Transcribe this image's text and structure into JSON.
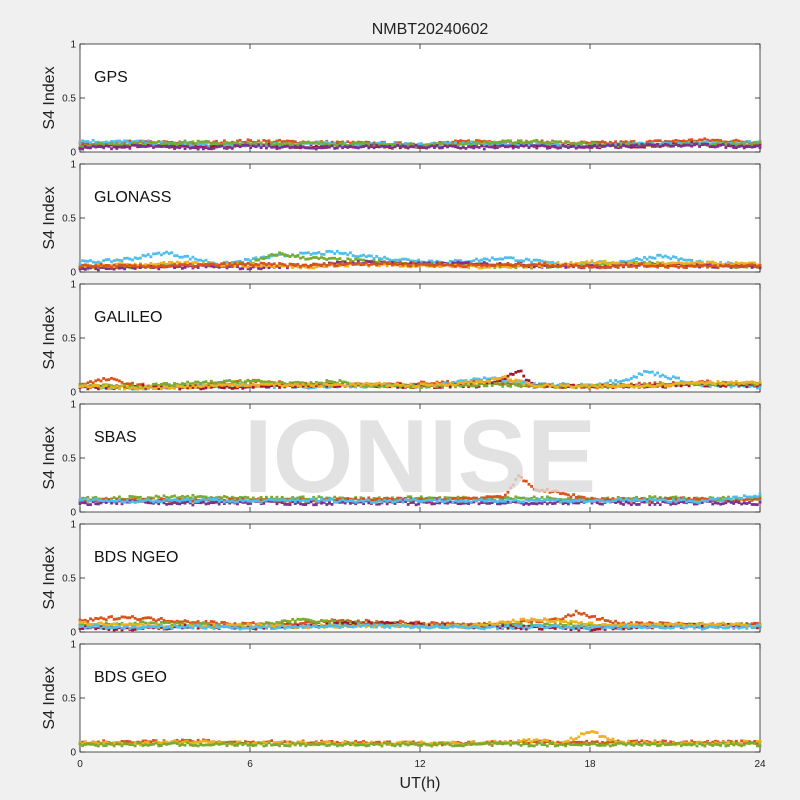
{
  "watermark": "IONISE",
  "chart_data": {
    "type": "scatter",
    "title": "NMBT20240602",
    "xlabel": "UT(h)",
    "ylabel": "S4 Index",
    "xlim": [
      0,
      24
    ],
    "ylim": [
      0,
      1
    ],
    "x_ticks": [
      "0",
      "6",
      "12",
      "18",
      "24"
    ],
    "y_ticks": [
      "0",
      "0.5",
      "1"
    ],
    "colors": [
      "#0072BD",
      "#D95319",
      "#EDB120",
      "#7E2F8E",
      "#77AC30",
      "#4DBEEE",
      "#A2142F"
    ],
    "panels": [
      {
        "label": "GPS",
        "series": [
          {
            "color": "#A2142F",
            "x": [
              0,
              2,
              4,
              6,
              8,
              10,
              12,
              14,
              16,
              18,
              20,
              22,
              24
            ],
            "y": [
              0.05,
              0.06,
              0.05,
              0.07,
              0.05,
              0.06,
              0.05,
              0.07,
              0.06,
              0.05,
              0.06,
              0.08,
              0.06
            ]
          },
          {
            "color": "#D95319",
            "x": [
              0,
              2,
              4,
              6,
              8,
              10,
              12,
              14,
              16,
              18,
              20,
              22,
              24
            ],
            "y": [
              0.07,
              0.09,
              0.08,
              0.1,
              0.09,
              0.08,
              0.07,
              0.1,
              0.09,
              0.08,
              0.09,
              0.11,
              0.09
            ]
          },
          {
            "color": "#4DBEEE",
            "x": [
              0,
              2,
              4,
              6,
              8,
              10,
              12,
              14,
              16,
              18,
              20,
              22,
              24
            ],
            "y": [
              0.1,
              0.09,
              0.07,
              0.06,
              0.08,
              0.07,
              0.07,
              0.08,
              0.07,
              0.06,
              0.07,
              0.08,
              0.09
            ]
          },
          {
            "color": "#77AC30",
            "x": [
              0,
              2,
              4,
              6,
              8,
              10,
              12,
              14,
              16,
              18,
              20,
              22,
              24
            ],
            "y": [
              0.06,
              0.08,
              0.09,
              0.07,
              0.08,
              0.07,
              0.06,
              0.08,
              0.1,
              0.07,
              0.06,
              0.07,
              0.08
            ]
          },
          {
            "color": "#7E2F8E",
            "x": [
              0,
              2,
              4,
              6,
              8,
              10,
              12,
              14,
              16,
              18,
              20,
              22,
              24
            ],
            "y": [
              0.04,
              0.05,
              0.04,
              0.05,
              0.04,
              0.05,
              0.05,
              0.04,
              0.05,
              0.05,
              0.06,
              0.06,
              0.05
            ]
          }
        ]
      },
      {
        "label": "GLONASS",
        "series": [
          {
            "color": "#4DBEEE",
            "x": [
              0,
              1,
              2,
              3,
              5,
              7,
              9,
              11,
              13,
              15,
              17,
              19,
              20.5,
              22,
              24
            ],
            "y": [
              0.09,
              0.1,
              0.13,
              0.18,
              0.07,
              0.15,
              0.18,
              0.12,
              0.09,
              0.13,
              0.07,
              0.09,
              0.15,
              0.08,
              0.06
            ]
          },
          {
            "color": "#77AC30",
            "x": [
              0,
              2,
              4,
              6,
              7,
              8,
              10,
              12,
              14,
              16,
              18,
              20,
              22,
              24
            ],
            "y": [
              0.04,
              0.05,
              0.06,
              0.08,
              0.17,
              0.13,
              0.1,
              0.07,
              0.06,
              0.05,
              0.07,
              0.08,
              0.06,
              0.05
            ]
          },
          {
            "color": "#7E2F8E",
            "x": [
              0,
              2,
              4,
              6,
              8,
              10,
              12,
              14,
              16,
              18,
              20,
              22,
              24
            ],
            "y": [
              0.03,
              0.04,
              0.05,
              0.04,
              0.06,
              0.09,
              0.07,
              0.08,
              0.06,
              0.05,
              0.07,
              0.06,
              0.05
            ]
          },
          {
            "color": "#EDB120",
            "x": [
              0,
              2,
              4,
              6,
              8,
              10,
              12,
              14,
              16,
              18,
              20,
              22,
              24
            ],
            "y": [
              0.05,
              0.07,
              0.08,
              0.06,
              0.05,
              0.07,
              0.06,
              0.05,
              0.06,
              0.09,
              0.07,
              0.08,
              0.07
            ]
          },
          {
            "color": "#D95319",
            "x": [
              0,
              2,
              4,
              6,
              8,
              10,
              12,
              14,
              16,
              18,
              20,
              22,
              24
            ],
            "y": [
              0.06,
              0.05,
              0.06,
              0.07,
              0.06,
              0.08,
              0.07,
              0.06,
              0.07,
              0.05,
              0.06,
              0.05,
              0.06
            ]
          }
        ]
      },
      {
        "label": "GALILEO",
        "series": [
          {
            "color": "#D95319",
            "x": [
              0,
              1,
              2,
              4,
              6,
              8,
              10,
              12,
              14,
              16,
              18,
              20,
              22,
              24
            ],
            "y": [
              0.07,
              0.12,
              0.06,
              0.05,
              0.1,
              0.07,
              0.06,
              0.08,
              0.09,
              0.06,
              0.05,
              0.07,
              0.09,
              0.07
            ]
          },
          {
            "color": "#4DBEEE",
            "x": [
              0,
              2,
              4,
              6,
              8,
              10,
              12,
              13,
              14.5,
              16,
              18,
              19.5,
              20,
              22,
              24
            ],
            "y": [
              0.05,
              0.04,
              0.05,
              0.06,
              0.05,
              0.06,
              0.05,
              0.08,
              0.13,
              0.07,
              0.06,
              0.13,
              0.19,
              0.06,
              0.05
            ]
          },
          {
            "color": "#A2142F",
            "x": [
              0,
              2,
              4,
              6,
              8,
              10,
              12,
              14,
              15,
              15.5,
              16,
              18,
              20,
              22,
              24
            ],
            "y": [
              0.04,
              0.05,
              0.04,
              0.05,
              0.06,
              0.07,
              0.05,
              0.06,
              0.12,
              0.2,
              0.05,
              0.06,
              0.05,
              0.07,
              0.06
            ]
          },
          {
            "color": "#77AC30",
            "x": [
              0,
              2,
              4,
              6,
              8,
              9,
              10,
              12,
              14,
              16,
              18,
              20,
              22,
              24
            ],
            "y": [
              0.06,
              0.05,
              0.08,
              0.1,
              0.07,
              0.1,
              0.06,
              0.05,
              0.07,
              0.06,
              0.05,
              0.06,
              0.08,
              0.07
            ]
          },
          {
            "color": "#EDB120",
            "x": [
              0,
              2,
              4,
              6,
              8,
              10,
              12,
              14,
              15,
              16,
              18,
              20,
              22,
              24
            ],
            "y": [
              0.05,
              0.04,
              0.05,
              0.07,
              0.06,
              0.07,
              0.06,
              0.09,
              0.13,
              0.06,
              0.05,
              0.06,
              0.09,
              0.08
            ]
          }
        ]
      },
      {
        "label": "SBAS",
        "series": [
          {
            "color": "#77AC30",
            "x": [
              0,
              2,
              4,
              6,
              8,
              10,
              12,
              14,
              16,
              18,
              20,
              22,
              24
            ],
            "y": [
              0.12,
              0.13,
              0.14,
              0.12,
              0.13,
              0.12,
              0.13,
              0.12,
              0.13,
              0.12,
              0.13,
              0.12,
              0.13
            ]
          },
          {
            "color": "#D95319",
            "x": [
              0,
              2,
              4,
              6,
              8,
              10,
              12,
              14,
              15,
              15.5,
              16,
              18,
              20,
              22,
              24
            ],
            "y": [
              0.1,
              0.11,
              0.1,
              0.11,
              0.1,
              0.12,
              0.11,
              0.13,
              0.15,
              0.33,
              0.22,
              0.12,
              0.11,
              0.12,
              0.11
            ]
          },
          {
            "color": "#7E2F8E",
            "x": [
              0,
              2,
              4,
              6,
              8,
              10,
              12,
              14,
              16,
              18,
              20,
              22,
              24
            ],
            "y": [
              0.08,
              0.09,
              0.08,
              0.09,
              0.08,
              0.09,
              0.08,
              0.09,
              0.08,
              0.09,
              0.08,
              0.09,
              0.08
            ]
          },
          {
            "color": "#4DBEEE",
            "x": [
              0,
              2,
              4,
              6,
              8,
              10,
              12,
              14,
              16,
              18,
              20,
              22,
              24
            ],
            "y": [
              0.11,
              0.1,
              0.11,
              0.1,
              0.11,
              0.1,
              0.11,
              0.1,
              0.11,
              0.1,
              0.11,
              0.1,
              0.15
            ]
          }
        ]
      },
      {
        "label": "BDS NGEO",
        "series": [
          {
            "color": "#D95319",
            "x": [
              0,
              1.5,
              3,
              5,
              7,
              9,
              11,
              13,
              15,
              17,
              17.5,
              19,
              21,
              23,
              24
            ],
            "y": [
              0.1,
              0.14,
              0.11,
              0.08,
              0.07,
              0.1,
              0.09,
              0.07,
              0.08,
              0.12,
              0.18,
              0.08,
              0.07,
              0.06,
              0.07
            ]
          },
          {
            "color": "#77AC30",
            "x": [
              0,
              2,
              4,
              6,
              7.5,
              9,
              11,
              13,
              15,
              17,
              19,
              21,
              23,
              24
            ],
            "y": [
              0.06,
              0.08,
              0.07,
              0.05,
              0.11,
              0.09,
              0.07,
              0.05,
              0.06,
              0.07,
              0.05,
              0.06,
              0.07,
              0.06
            ]
          },
          {
            "color": "#A2142F",
            "x": [
              0,
              2,
              4,
              6,
              8,
              10,
              12,
              14,
              16,
              18,
              20,
              22,
              24
            ],
            "y": [
              0.04,
              0.03,
              0.05,
              0.04,
              0.06,
              0.08,
              0.07,
              0.05,
              0.04,
              0.03,
              0.05,
              0.06,
              0.05
            ]
          },
          {
            "color": "#EDB120",
            "x": [
              0,
              2,
              4,
              6,
              8,
              10,
              12,
              14,
              16,
              18,
              20,
              22,
              24
            ],
            "y": [
              0.08,
              0.06,
              0.05,
              0.06,
              0.05,
              0.06,
              0.05,
              0.06,
              0.12,
              0.07,
              0.06,
              0.07,
              0.06
            ]
          },
          {
            "color": "#4DBEEE",
            "x": [
              0,
              2,
              4,
              6,
              8,
              10,
              12,
              14,
              16,
              18,
              20,
              22,
              24
            ],
            "y": [
              0.05,
              0.04,
              0.05,
              0.04,
              0.05,
              0.06,
              0.05,
              0.04,
              0.05,
              0.04,
              0.05,
              0.04,
              0.05
            ]
          }
        ]
      },
      {
        "label": "BDS GEO",
        "series": [
          {
            "color": "#D95319",
            "x": [
              0,
              2,
              4,
              6,
              8,
              10,
              12,
              14,
              16,
              18,
              20,
              22,
              24
            ],
            "y": [
              0.09,
              0.09,
              0.1,
              0.09,
              0.09,
              0.09,
              0.08,
              0.08,
              0.09,
              0.09,
              0.09,
              0.09,
              0.09
            ]
          },
          {
            "color": "#EDB120",
            "x": [
              0,
              2,
              4,
              6,
              8,
              10,
              12,
              14,
              15,
              16,
              17,
              18,
              19,
              20,
              22,
              24
            ],
            "y": [
              0.08,
              0.08,
              0.09,
              0.08,
              0.08,
              0.08,
              0.08,
              0.08,
              0.09,
              0.11,
              0.08,
              0.19,
              0.09,
              0.08,
              0.08,
              0.09
            ]
          },
          {
            "color": "#77AC30",
            "x": [
              0,
              4,
              8,
              12,
              16,
              20,
              24
            ],
            "y": [
              0.07,
              0.07,
              0.07,
              0.07,
              0.07,
              0.07,
              0.07
            ]
          }
        ]
      }
    ]
  }
}
